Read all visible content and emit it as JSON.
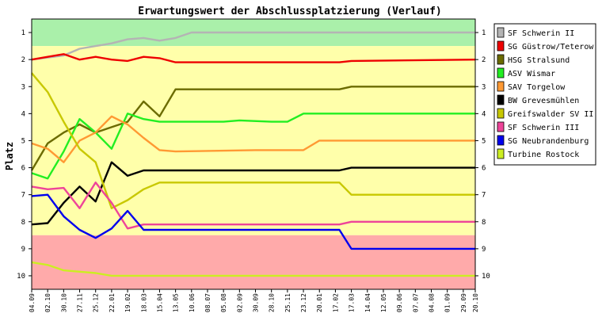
{
  "chart_data": {
    "type": "line",
    "title": "Erwartungswert der Abschlussplatzierung (Verlauf)",
    "ylabel": "Platz",
    "xlabel": "",
    "y_ticks": [
      1,
      2,
      3,
      4,
      5,
      6,
      7,
      8,
      9,
      10
    ],
    "ylim": [
      0.5,
      10.5
    ],
    "y_inverted": true,
    "legend_position": "right",
    "grid": false,
    "x_labels": [
      "04.09",
      "02.10",
      "30.10",
      "27.11",
      "25.12",
      "22.01",
      "19.02",
      "18.03",
      "15.04",
      "13.05",
      "10.06",
      "08.07",
      "05.08",
      "02.09",
      "30.09",
      "28.10",
      "25.11",
      "23.12",
      "20.01",
      "17.02",
      "17.03",
      "14.04",
      "12.05",
      "09.06",
      "07.07",
      "04.08",
      "01.09",
      "29.09",
      "20.10"
    ],
    "x_label_index": [
      0,
      4,
      8,
      12,
      16,
      20,
      24,
      28,
      32,
      36,
      40,
      44,
      48,
      52,
      56,
      60,
      64,
      68,
      72,
      76,
      80,
      84,
      88,
      92,
      96,
      100,
      104,
      108,
      111
    ],
    "x_count": 112,
    "zones": [
      {
        "from": 0.5,
        "to": 1.5,
        "color": "#aaf0aa"
      },
      {
        "from": 1.5,
        "to": 8.5,
        "color": "#ffffaa"
      },
      {
        "from": 8.5,
        "to": 10.5,
        "color": "#ffaaaa"
      }
    ],
    "series": [
      {
        "name": "SF Schwerin II",
        "color": "#b4b4b4",
        "points": [
          [
            0,
            2
          ],
          [
            8,
            1.85
          ],
          [
            12,
            1.6
          ],
          [
            16,
            1.5
          ],
          [
            20,
            1.4
          ],
          [
            24,
            1.25
          ],
          [
            28,
            1.2
          ],
          [
            32,
            1.3
          ],
          [
            36,
            1.2
          ],
          [
            40,
            1
          ],
          [
            111,
            1
          ]
        ]
      },
      {
        "name": "SG Güstrow/Teterow",
        "color": "#ee0000",
        "points": [
          [
            0,
            2
          ],
          [
            4,
            1.9
          ],
          [
            8,
            1.8
          ],
          [
            12,
            2
          ],
          [
            16,
            1.9
          ],
          [
            20,
            2
          ],
          [
            24,
            2.05
          ],
          [
            28,
            1.9
          ],
          [
            32,
            1.95
          ],
          [
            36,
            2.1
          ],
          [
            40,
            2.1
          ],
          [
            77,
            2.1
          ],
          [
            80,
            2.05
          ],
          [
            111,
            2
          ]
        ]
      },
      {
        "name": "HSG Stralsund",
        "color": "#6b6b00",
        "points": [
          [
            0,
            6.1
          ],
          [
            4,
            5.1
          ],
          [
            8,
            4.7
          ],
          [
            12,
            4.4
          ],
          [
            16,
            4.7
          ],
          [
            20,
            4.5
          ],
          [
            24,
            4.3
          ],
          [
            28,
            3.55
          ],
          [
            32,
            4.1
          ],
          [
            36,
            3.1
          ],
          [
            40,
            3.1
          ],
          [
            77,
            3.1
          ],
          [
            80,
            3
          ],
          [
            111,
            3
          ]
        ]
      },
      {
        "name": "ASV Wismar",
        "color": "#22ee22",
        "points": [
          [
            0,
            6.2
          ],
          [
            4,
            6.4
          ],
          [
            8,
            5.4
          ],
          [
            12,
            4.2
          ],
          [
            16,
            4.7
          ],
          [
            20,
            5.3
          ],
          [
            24,
            4.0
          ],
          [
            28,
            4.2
          ],
          [
            32,
            4.3
          ],
          [
            36,
            4.3
          ],
          [
            48,
            4.3
          ],
          [
            52,
            4.25
          ],
          [
            60,
            4.3
          ],
          [
            64,
            4.3
          ],
          [
            68,
            4.0
          ],
          [
            111,
            4
          ]
        ]
      },
      {
        "name": "SAV Torgelow",
        "color": "#ff9933",
        "points": [
          [
            0,
            5.1
          ],
          [
            4,
            5.3
          ],
          [
            8,
            5.8
          ],
          [
            12,
            5.0
          ],
          [
            16,
            4.7
          ],
          [
            20,
            4.1
          ],
          [
            24,
            4.4
          ],
          [
            28,
            4.9
          ],
          [
            32,
            5.35
          ],
          [
            36,
            5.4
          ],
          [
            56,
            5.35
          ],
          [
            68,
            5.35
          ],
          [
            72,
            5.0
          ],
          [
            111,
            5
          ]
        ]
      },
      {
        "name": "BW Grevesmühlen",
        "color": "#000000",
        "points": [
          [
            0,
            8.1
          ],
          [
            4,
            8.05
          ],
          [
            8,
            7.3
          ],
          [
            12,
            6.7
          ],
          [
            16,
            7.25
          ],
          [
            20,
            5.8
          ],
          [
            24,
            6.3
          ],
          [
            28,
            6.1
          ],
          [
            32,
            6.1
          ],
          [
            36,
            6.1
          ],
          [
            77,
            6.1
          ],
          [
            80,
            6
          ],
          [
            111,
            6
          ]
        ]
      },
      {
        "name": "Greifswalder SV II",
        "color": "#c8c800",
        "points": [
          [
            0,
            2.5
          ],
          [
            4,
            3.2
          ],
          [
            8,
            4.3
          ],
          [
            12,
            5.3
          ],
          [
            16,
            5.8
          ],
          [
            20,
            7.5
          ],
          [
            24,
            7.2
          ],
          [
            28,
            6.8
          ],
          [
            32,
            6.55
          ],
          [
            36,
            6.55
          ],
          [
            77,
            6.55
          ],
          [
            80,
            7
          ],
          [
            111,
            7
          ]
        ]
      },
      {
        "name": "SF Schwerin III",
        "color": "#ee4499",
        "points": [
          [
            0,
            6.7
          ],
          [
            4,
            6.8
          ],
          [
            8,
            6.75
          ],
          [
            12,
            7.5
          ],
          [
            16,
            6.55
          ],
          [
            20,
            7.3
          ],
          [
            24,
            8.25
          ],
          [
            28,
            8.1
          ],
          [
            32,
            8.1
          ],
          [
            36,
            8.1
          ],
          [
            77,
            8.1
          ],
          [
            80,
            8
          ],
          [
            111,
            8
          ]
        ]
      },
      {
        "name": "SG Neubrandenburg",
        "color": "#0000ee",
        "points": [
          [
            0,
            7.05
          ],
          [
            4,
            7.0
          ],
          [
            8,
            7.8
          ],
          [
            12,
            8.3
          ],
          [
            16,
            8.6
          ],
          [
            20,
            8.25
          ],
          [
            24,
            7.6
          ],
          [
            28,
            8.3
          ],
          [
            32,
            8.3
          ],
          [
            36,
            8.3
          ],
          [
            77,
            8.3
          ],
          [
            80,
            9
          ],
          [
            111,
            9
          ]
        ]
      },
      {
        "name": "Turbine Rostock",
        "color": "#ccee22",
        "points": [
          [
            0,
            9.5
          ],
          [
            4,
            9.6
          ],
          [
            8,
            9.8
          ],
          [
            12,
            9.85
          ],
          [
            16,
            9.9
          ],
          [
            20,
            10
          ],
          [
            111,
            10
          ]
        ]
      }
    ]
  }
}
